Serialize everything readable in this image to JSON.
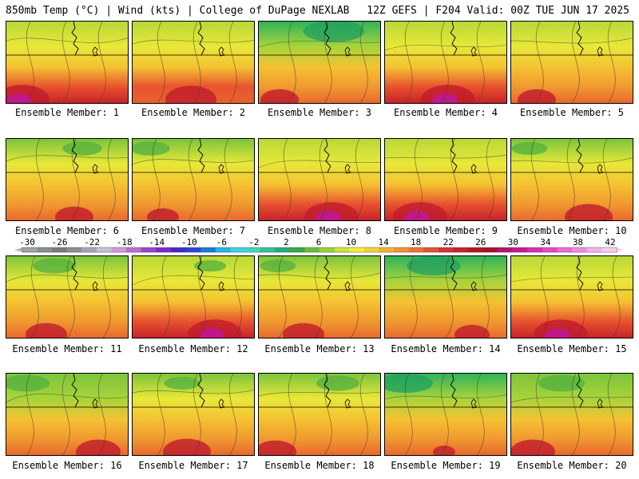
{
  "header": {
    "left": "850mb Temp (°C) | Wind (kts) | College of DuPage NEXLAB",
    "right": "12Z GEFS | F204 Valid: 00Z TUE JUN 17 2025"
  },
  "colorbar": {
    "ticks": [
      "-30",
      "-26",
      "-22",
      "-18",
      "-14",
      "-10",
      "-6",
      "-2",
      "2",
      "6",
      "10",
      "14",
      "18",
      "22",
      "26",
      "30",
      "34",
      "38",
      "42"
    ],
    "colors": [
      "#9aa6a0",
      "#869088",
      "#747d78",
      "#8f8f9a",
      "#a6a6b8",
      "#c2c2d8",
      "#cf9ad8",
      "#c06ad0",
      "#9a44cc",
      "#7a2ac6",
      "#4628c8",
      "#2646dc",
      "#1a7ad8",
      "#22b6e8",
      "#3ed2e6",
      "#3ed8b8",
      "#30c29a",
      "#24ae72",
      "#34a844",
      "#66be38",
      "#98d238",
      "#cce436",
      "#f2f236",
      "#f6d232",
      "#f4b230",
      "#f09430",
      "#ea7630",
      "#e25430",
      "#d83030",
      "#c8202a",
      "#b41818",
      "#a41028",
      "#b41474",
      "#c81898",
      "#d82ab8",
      "#e448c8",
      "#ec6ad8",
      "#f48ce0",
      "#f8b0e8",
      "#fcd0f0"
    ]
  },
  "members": [
    {
      "label": "Ensemble Member: 1",
      "hot": 0.85,
      "cool": 0.25
    },
    {
      "label": "Ensemble Member: 2",
      "hot": 0.8,
      "cool": 0.2
    },
    {
      "label": "Ensemble Member: 3",
      "hot": 0.6,
      "cool": 0.85
    },
    {
      "label": "Ensemble Member: 4",
      "hot": 0.85,
      "cool": 0.2
    },
    {
      "label": "Ensemble Member: 5",
      "hot": 0.6,
      "cool": 0.35
    },
    {
      "label": "Ensemble Member: 6",
      "hot": 0.6,
      "cool": 0.55
    },
    {
      "label": "Ensemble Member: 7",
      "hot": 0.5,
      "cool": 0.55
    },
    {
      "label": "Ensemble Member: 8",
      "hot": 0.85,
      "cool": 0.3
    },
    {
      "label": "Ensemble Member: 9",
      "hot": 0.85,
      "cool": 0.35
    },
    {
      "label": "Ensemble Member: 10",
      "hot": 0.75,
      "cool": 0.5
    },
    {
      "label": "Ensemble Member: 11",
      "hot": 0.65,
      "cool": 0.6
    },
    {
      "label": "Ensemble Member: 12",
      "hot": 0.85,
      "cool": 0.45
    },
    {
      "label": "Ensemble Member: 13",
      "hot": 0.65,
      "cool": 0.5
    },
    {
      "label": "Ensemble Member: 14",
      "hot": 0.55,
      "cool": 0.75
    },
    {
      "label": "Ensemble Member: 15",
      "hot": 0.85,
      "cool": 0.35
    },
    {
      "label": "Ensemble Member: 16",
      "hot": 0.7,
      "cool": 0.65
    },
    {
      "label": "Ensemble Member: 17",
      "hot": 0.75,
      "cool": 0.5
    },
    {
      "label": "Ensemble Member: 18",
      "hot": 0.65,
      "cool": 0.6
    },
    {
      "label": "Ensemble Member: 19",
      "hot": 0.35,
      "cool": 0.75
    },
    {
      "label": "Ensemble Member: 20",
      "hot": 0.7,
      "cool": 0.65
    }
  ]
}
